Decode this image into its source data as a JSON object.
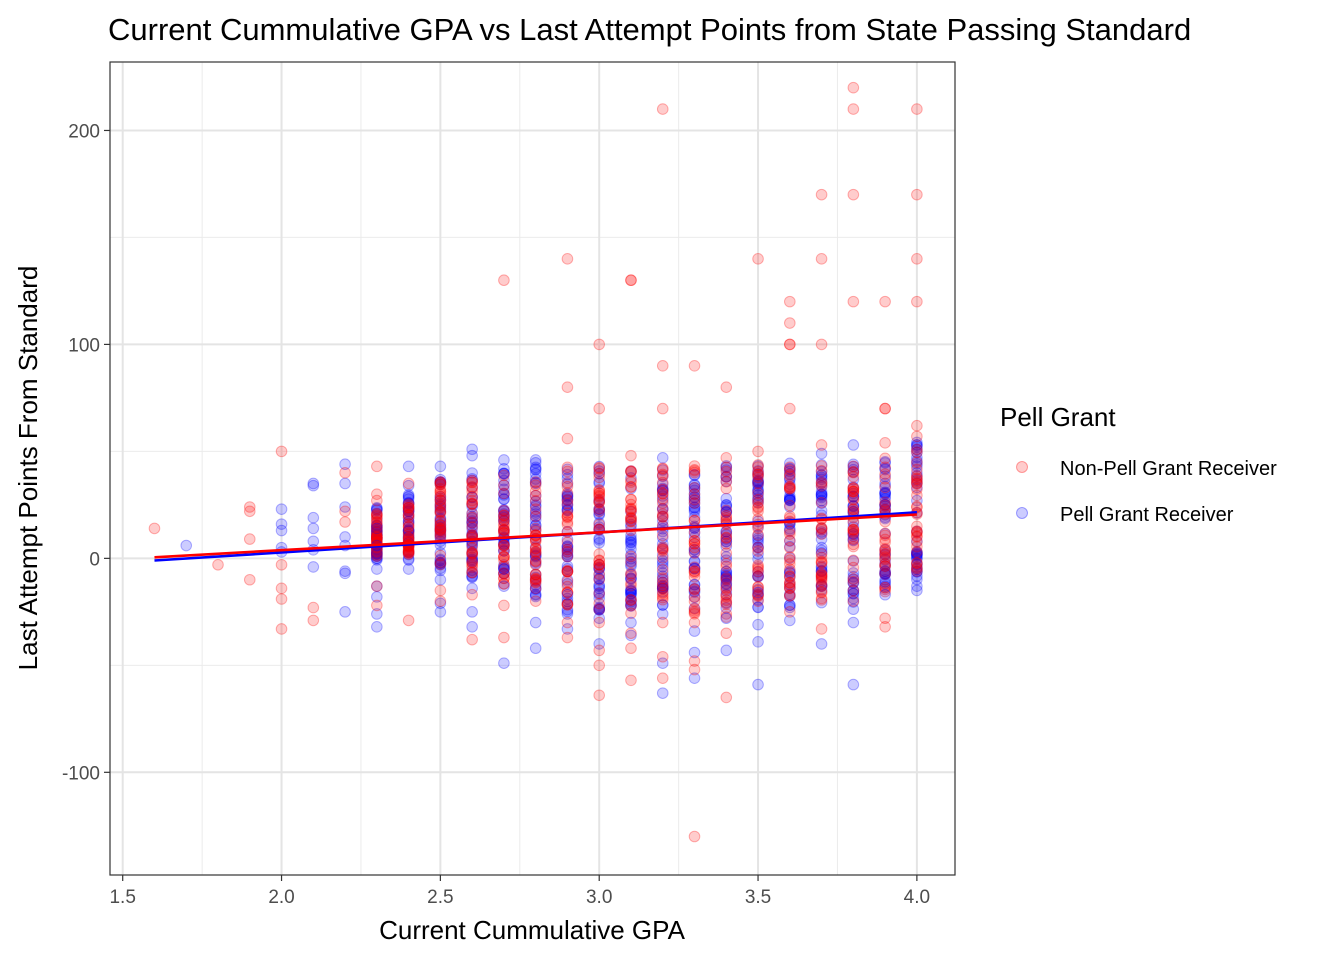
{
  "chart_data": {
    "type": "scatter",
    "title": "Current Cummulative GPA vs Last Attempt Points from State Passing Standard",
    "xlabel": "Current Cummulative GPA",
    "ylabel": "Last Attempt Points From Standard",
    "xlim": [
      1.5,
      4.0
    ],
    "ylim": [
      -140,
      220
    ],
    "x_ticks": [
      "1.5",
      "2.0",
      "2.5",
      "3.0",
      "3.5",
      "4.0"
    ],
    "x_tick_values": [
      1.5,
      2.0,
      2.5,
      3.0,
      3.5,
      4.0
    ],
    "y_ticks": [
      "-100",
      "0",
      "100",
      "200"
    ],
    "y_tick_values": [
      -100,
      0,
      100,
      200
    ],
    "grid": true,
    "legend": {
      "title": "Pell Grant",
      "position": "right",
      "entries": [
        "Non-Pell Grant Receiver",
        "Pell Grant Receiver"
      ]
    },
    "series": [
      {
        "name": "Non-Pell Grant Receiver",
        "color": "#ff0000",
        "fit_line": {
          "x": [
            1.6,
            4.0
          ],
          "y": [
            0.5,
            20.5
          ]
        },
        "points": [
          [
            1.6,
            14
          ],
          [
            1.8,
            -3
          ],
          [
            1.9,
            24
          ],
          [
            1.9,
            22
          ],
          [
            1.9,
            9
          ],
          [
            1.9,
            -10
          ],
          [
            2.0,
            50
          ],
          [
            2.0,
            -3
          ],
          [
            2.0,
            -14
          ],
          [
            2.0,
            -19
          ],
          [
            2.0,
            -33
          ],
          [
            2.1,
            -23
          ],
          [
            2.1,
            -29
          ],
          [
            2.2,
            40
          ],
          [
            2.2,
            22
          ],
          [
            2.2,
            17
          ],
          [
            2.3,
            43
          ],
          [
            2.3,
            30
          ],
          [
            2.3,
            27
          ],
          [
            2.3,
            20
          ],
          [
            2.3,
            10
          ],
          [
            2.3,
            -13
          ],
          [
            2.3,
            -22
          ],
          [
            2.4,
            -29
          ],
          [
            2.4,
            35
          ],
          [
            2.4,
            12
          ],
          [
            2.4,
            5
          ],
          [
            2.5,
            -15
          ],
          [
            2.5,
            -20
          ],
          [
            2.5,
            30
          ],
          [
            2.6,
            -38
          ],
          [
            2.6,
            -17
          ],
          [
            2.6,
            27
          ],
          [
            2.7,
            130
          ],
          [
            2.7,
            -37
          ],
          [
            2.7,
            -22
          ],
          [
            2.8,
            -20
          ],
          [
            2.8,
            -14
          ],
          [
            2.9,
            140
          ],
          [
            2.9,
            80
          ],
          [
            2.9,
            56
          ],
          [
            2.9,
            -37
          ],
          [
            2.9,
            -30
          ],
          [
            3.0,
            100
          ],
          [
            3.0,
            70
          ],
          [
            3.0,
            -30
          ],
          [
            3.0,
            -43
          ],
          [
            3.0,
            -50
          ],
          [
            3.0,
            -64
          ],
          [
            3.1,
            130
          ],
          [
            3.1,
            130
          ],
          [
            3.1,
            48
          ],
          [
            3.1,
            -35
          ],
          [
            3.1,
            -42
          ],
          [
            3.1,
            -57
          ],
          [
            3.2,
            210
          ],
          [
            3.2,
            90
          ],
          [
            3.2,
            70
          ],
          [
            3.2,
            -30
          ],
          [
            3.2,
            -46
          ],
          [
            3.2,
            -56
          ],
          [
            3.3,
            90
          ],
          [
            3.3,
            -30
          ],
          [
            3.3,
            -48
          ],
          [
            3.3,
            -52
          ],
          [
            3.3,
            -130
          ],
          [
            3.4,
            80
          ],
          [
            3.4,
            47
          ],
          [
            3.4,
            -35
          ],
          [
            3.4,
            -65
          ],
          [
            3.5,
            140
          ],
          [
            3.5,
            50
          ],
          [
            3.5,
            -20
          ],
          [
            3.6,
            120
          ],
          [
            3.6,
            110
          ],
          [
            3.6,
            100
          ],
          [
            3.6,
            100
          ],
          [
            3.6,
            70
          ],
          [
            3.6,
            -25
          ],
          [
            3.7,
            170
          ],
          [
            3.7,
            140
          ],
          [
            3.7,
            100
          ],
          [
            3.7,
            53
          ],
          [
            3.7,
            -33
          ],
          [
            3.8,
            220
          ],
          [
            3.8,
            210
          ],
          [
            3.8,
            170
          ],
          [
            3.8,
            120
          ],
          [
            3.8,
            -20
          ],
          [
            3.9,
            120
          ],
          [
            3.9,
            70
          ],
          [
            3.9,
            70
          ],
          [
            3.9,
            54
          ],
          [
            3.9,
            -28
          ],
          [
            3.9,
            -32
          ],
          [
            4.0,
            210
          ],
          [
            4.0,
            170
          ],
          [
            4.0,
            140
          ],
          [
            4.0,
            120
          ],
          [
            4.0,
            62
          ],
          [
            4.0,
            57
          ]
        ]
      },
      {
        "name": "Pell Grant Receiver",
        "color": "#0000ff",
        "fit_line": {
          "x": [
            1.6,
            4.0
          ],
          "y": [
            -1,
            21.5
          ]
        },
        "points": [
          [
            1.7,
            6
          ],
          [
            2.0,
            23
          ],
          [
            2.0,
            16
          ],
          [
            2.0,
            13
          ],
          [
            2.0,
            5
          ],
          [
            2.0,
            3
          ],
          [
            2.1,
            35
          ],
          [
            2.1,
            34
          ],
          [
            2.1,
            19
          ],
          [
            2.1,
            14
          ],
          [
            2.1,
            8
          ],
          [
            2.1,
            4
          ],
          [
            2.1,
            -4
          ],
          [
            2.2,
            44
          ],
          [
            2.2,
            35
          ],
          [
            2.2,
            24
          ],
          [
            2.2,
            10
          ],
          [
            2.2,
            6
          ],
          [
            2.2,
            -6
          ],
          [
            2.2,
            -7
          ],
          [
            2.2,
            -25
          ],
          [
            2.3,
            14
          ],
          [
            2.3,
            6
          ],
          [
            2.3,
            2
          ],
          [
            2.3,
            -5
          ],
          [
            2.3,
            -13
          ],
          [
            2.3,
            -18
          ],
          [
            2.3,
            -26
          ],
          [
            2.3,
            -32
          ],
          [
            2.4,
            43
          ],
          [
            2.4,
            34
          ],
          [
            2.4,
            -5
          ],
          [
            2.5,
            43
          ],
          [
            2.5,
            -10
          ],
          [
            2.5,
            -21
          ],
          [
            2.5,
            -25
          ],
          [
            2.6,
            51
          ],
          [
            2.6,
            48
          ],
          [
            2.6,
            -14
          ],
          [
            2.6,
            -25
          ],
          [
            2.6,
            -32
          ],
          [
            2.7,
            46
          ],
          [
            2.7,
            -5
          ],
          [
            2.7,
            -13
          ],
          [
            2.7,
            -49
          ],
          [
            2.8,
            46
          ],
          [
            2.8,
            -30
          ],
          [
            2.8,
            -42
          ],
          [
            2.9,
            -17
          ],
          [
            2.9,
            -33
          ],
          [
            3.0,
            -14
          ],
          [
            3.0,
            -28
          ],
          [
            3.0,
            -40
          ],
          [
            3.1,
            -30
          ],
          [
            3.1,
            -36
          ],
          [
            3.2,
            47
          ],
          [
            3.2,
            -26
          ],
          [
            3.2,
            -49
          ],
          [
            3.2,
            -63
          ],
          [
            3.3,
            -34
          ],
          [
            3.3,
            -44
          ],
          [
            3.3,
            -56
          ],
          [
            3.4,
            -12
          ],
          [
            3.4,
            -28
          ],
          [
            3.4,
            -43
          ],
          [
            3.5,
            -16
          ],
          [
            3.5,
            -31
          ],
          [
            3.5,
            -39
          ],
          [
            3.5,
            -59
          ],
          [
            3.6,
            -29
          ],
          [
            3.7,
            49
          ],
          [
            3.7,
            -40
          ],
          [
            3.8,
            53
          ],
          [
            3.8,
            -30
          ],
          [
            3.8,
            -59
          ],
          [
            3.9,
            -6
          ],
          [
            3.9,
            -11
          ],
          [
            3.9,
            -17
          ],
          [
            4.0,
            -13
          ],
          [
            4.0,
            -15
          ]
        ]
      }
    ],
    "dense_bands": [
      {
        "x": 2.3,
        "pell": [
          -2,
          24
        ],
        "nonpell": [
          0,
          22
        ]
      },
      {
        "x": 2.4,
        "pell": [
          -1,
          30
        ],
        "nonpell": [
          2,
          28
        ]
      },
      {
        "x": 2.5,
        "pell": [
          -6,
          40
        ],
        "nonpell": [
          -5,
          36
        ]
      },
      {
        "x": 2.6,
        "pell": [
          -10,
          42
        ],
        "nonpell": [
          -8,
          38
        ]
      },
      {
        "x": 2.7,
        "pell": [
          -12,
          44
        ],
        "nonpell": [
          -12,
          40
        ]
      },
      {
        "x": 2.8,
        "pell": [
          -18,
          45
        ],
        "nonpell": [
          -16,
          42
        ]
      },
      {
        "x": 2.9,
        "pell": [
          -26,
          44
        ],
        "nonpell": [
          -22,
          44
        ]
      },
      {
        "x": 3.0,
        "pell": [
          -25,
          43
        ],
        "nonpell": [
          -24,
          43
        ]
      },
      {
        "x": 3.1,
        "pell": [
          -27,
          44
        ],
        "nonpell": [
          -26,
          42
        ]
      },
      {
        "x": 3.2,
        "pell": [
          -22,
          45
        ],
        "nonpell": [
          -24,
          44
        ]
      },
      {
        "x": 3.3,
        "pell": [
          -25,
          44
        ],
        "nonpell": [
          -27,
          45
        ]
      },
      {
        "x": 3.4,
        "pell": [
          -25,
          44
        ],
        "nonpell": [
          -28,
          45
        ]
      },
      {
        "x": 3.5,
        "pell": [
          -24,
          44
        ],
        "nonpell": [
          -18,
          45
        ]
      },
      {
        "x": 3.6,
        "pell": [
          -24,
          45
        ],
        "nonpell": [
          -18,
          45
        ]
      },
      {
        "x": 3.7,
        "pell": [
          -22,
          45
        ],
        "nonpell": [
          -20,
          45
        ]
      },
      {
        "x": 3.8,
        "pell": [
          -24,
          45
        ],
        "nonpell": [
          -16,
          45
        ]
      },
      {
        "x": 3.9,
        "pell": [
          -14,
          46
        ],
        "nonpell": [
          -16,
          48
        ]
      },
      {
        "x": 4.0,
        "pell": [
          -10,
          55
        ],
        "nonpell": [
          -6,
          55
        ]
      }
    ]
  }
}
